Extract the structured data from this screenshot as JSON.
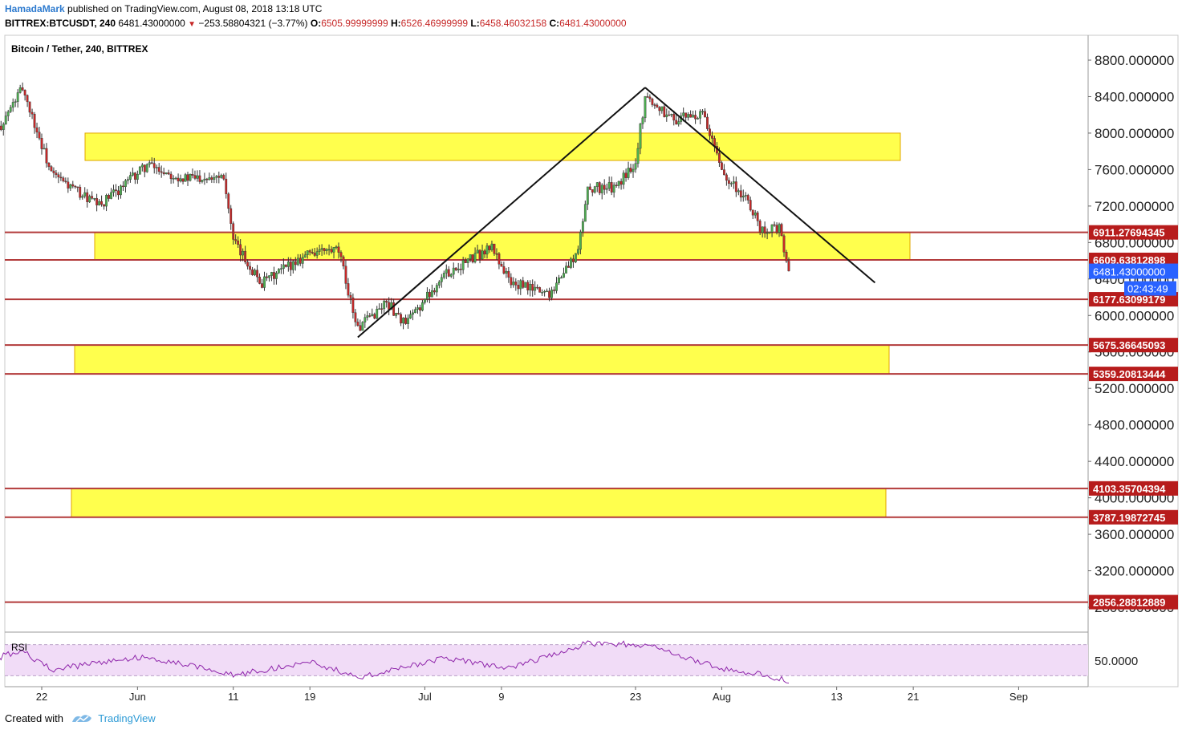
{
  "header": {
    "author": "HamadaMark",
    "published": "published on TradingView.com, August 08, 2018 13:18 UTC",
    "symbol": "BITTREX:BTCUSDT, 240",
    "last": "6481.43000000",
    "change": "−253.58804321 (−3.77%)",
    "o_label": "O:",
    "o_val": "6505.99999999",
    "h_label": "H:",
    "h_val": "6526.46999999",
    "l_label": "L:",
    "l_val": "6458.46032158",
    "c_label": "C:",
    "c_val": "6481.43000000"
  },
  "legend": "Bitcoin / Tether, 240, BITTREX",
  "rsi_label": "RSI",
  "footer": {
    "created": "Created with",
    "brand": "TradingView"
  },
  "colors": {
    "up": "#4caf50",
    "down": "#c62828",
    "zone_fill": "#ffff4d",
    "zone_stroke": "#e0a500",
    "level_line": "#b23a3a",
    "rsi_line": "#8e24aa",
    "rsi_band": "#f1dcf7",
    "price_tag": "#2962ff"
  },
  "chart_data": [
    {
      "type": "candlestick",
      "title": "Bitcoin / Tether, 240, BITTREX",
      "ylim": [
        2600,
        8900
      ],
      "y_ticks": [
        "8800.000000",
        "8400.000000",
        "8000.000000",
        "7600.000000",
        "7200.000000",
        "6800.000000",
        "6400.000000",
        "6000.000000",
        "5600.000000",
        "5200.000000",
        "4800.000000",
        "4400.000000",
        "4000.000000",
        "3600.000000",
        "3200.000000",
        "2800.000000"
      ],
      "x_ticks": [
        "22",
        "Jun",
        "11",
        "19",
        "Jul",
        "9",
        "23",
        "Aug",
        "13",
        "21",
        "Sep"
      ],
      "approx_close_path": [
        {
          "date": "May 17",
          "close": 7950
        },
        {
          "date": "May 20",
          "close": 8500
        },
        {
          "date": "May 23",
          "close": 7550
        },
        {
          "date": "May 28",
          "close": 7200
        },
        {
          "date": "Jun 2",
          "close": 7650
        },
        {
          "date": "Jun 6",
          "close": 7500
        },
        {
          "date": "Jun 10",
          "close": 7550
        },
        {
          "date": "Jun 11",
          "close": 6800
        },
        {
          "date": "Jun 14",
          "close": 6350
        },
        {
          "date": "Jun 19",
          "close": 6700
        },
        {
          "date": "Jun 22",
          "close": 6700
        },
        {
          "date": "Jun 24",
          "close": 5850
        },
        {
          "date": "Jun 27",
          "close": 6150
        },
        {
          "date": "Jun 29",
          "close": 5900
        },
        {
          "date": "Jul 3",
          "close": 6450
        },
        {
          "date": "Jul 8",
          "close": 6750
        },
        {
          "date": "Jul 10",
          "close": 6350
        },
        {
          "date": "Jul 14",
          "close": 6250
        },
        {
          "date": "Jul 17",
          "close": 6700
        },
        {
          "date": "Jul 18",
          "close": 7400
        },
        {
          "date": "Jul 21",
          "close": 7400
        },
        {
          "date": "Jul 23",
          "close": 7700
        },
        {
          "date": "Jul 24",
          "close": 8400
        },
        {
          "date": "Jul 27",
          "close": 8150
        },
        {
          "date": "Jul 30",
          "close": 8200
        },
        {
          "date": "Aug 1",
          "close": 7600
        },
        {
          "date": "Aug 4",
          "close": 7200
        },
        {
          "date": "Aug 5",
          "close": 6950
        },
        {
          "date": "Aug 7",
          "close": 6950
        },
        {
          "date": "Aug 8",
          "close": 6481.43
        }
      ],
      "zones": [
        {
          "from": 7700,
          "to": 8000
        },
        {
          "from": 6609.63812898,
          "to": 6911.27694345
        },
        {
          "from": 5359.20813444,
          "to": 5675.36645093
        },
        {
          "from": 3787.19872745,
          "to": 4103.35704394
        }
      ],
      "levels": [
        {
          "value": 6911.27694345,
          "label": "6911.27694345"
        },
        {
          "value": 6609.63812898,
          "label": "6609.63812898"
        },
        {
          "value": 6177.63099179,
          "label": "6177.63099179"
        },
        {
          "value": 5675.36645093,
          "label": "5675.36645093"
        },
        {
          "value": 5359.20813444,
          "label": "5359.20813444"
        },
        {
          "value": 4103.35704394,
          "label": "4103.35704394"
        },
        {
          "value": 3787.19872745,
          "label": "3787.19872745"
        },
        {
          "value": 2856.28812889,
          "label": "2856.28812889"
        }
      ],
      "trend_lines": [
        {
          "from": {
            "date": "Jun 24",
            "price": 5760
          },
          "to": {
            "date": "Jul 24",
            "price": 8500
          }
        },
        {
          "from": {
            "date": "Jul 24",
            "price": 8500
          },
          "to": {
            "date": "Aug 17",
            "price": 6360
          }
        }
      ],
      "last_price": {
        "value": 6481.43,
        "label": "6481.43000000",
        "countdown": "02:43:49"
      }
    },
    {
      "type": "line",
      "title": "RSI",
      "ylim": [
        20,
        80
      ],
      "band": [
        30,
        70
      ],
      "y_ticks": [
        "50.0000"
      ],
      "approx_values": [
        {
          "date": "May 17",
          "rsi": 52
        },
        {
          "date": "May 20",
          "rsi": 62
        },
        {
          "date": "May 23",
          "rsi": 38
        },
        {
          "date": "Jun 2",
          "rsi": 55
        },
        {
          "date": "Jun 11",
          "rsi": 30
        },
        {
          "date": "Jun 19",
          "rsi": 48
        },
        {
          "date": "Jun 24",
          "rsi": 28
        },
        {
          "date": "Jul 3",
          "rsi": 52
        },
        {
          "date": "Jul 10",
          "rsi": 40
        },
        {
          "date": "Jul 18",
          "rsi": 72
        },
        {
          "date": "Jul 24",
          "rsi": 70
        },
        {
          "date": "Aug 1",
          "rsi": 40
        },
        {
          "date": "Aug 5",
          "rsi": 32
        },
        {
          "date": "Aug 8",
          "rsi": 24
        }
      ]
    }
  ]
}
